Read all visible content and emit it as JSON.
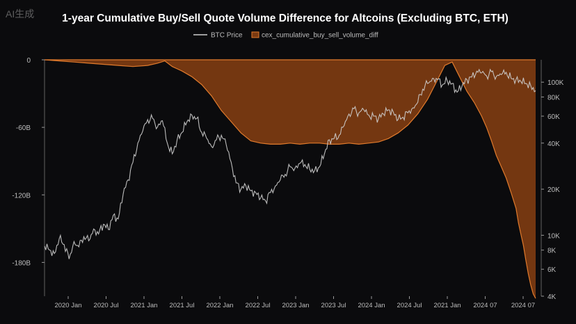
{
  "watermark": "AI生成",
  "colors": {
    "background": "#0b0b0d",
    "btc_line": "#cfcfcf",
    "diff_fill": "#7a3a12",
    "diff_line": "#e07a2c",
    "tick_text": "#bdbdbd",
    "title_text": "#ffffff"
  },
  "chart_data": {
    "type": "area",
    "title": "1-year Cumulative Buy/Sell Quote Volume Difference for Altcoins (Excluding BTC, ETH)",
    "legend_position": "top-center",
    "grid": false,
    "x_tick_labels": [
      "2020 Jan",
      "2020 Jul",
      "2021 Jan",
      "2021 Jul",
      "2022 Jan",
      "2022 Jul",
      "2023 Jan",
      "2023 Jul",
      "2024 Jan",
      "2024 Jul",
      "2021 Jan",
      "2024 07",
      "2024 07"
    ],
    "y_left": {
      "ticks": [
        0,
        -60,
        -120,
        -180
      ],
      "tick_labels": [
        "0",
        "-60B",
        "-120B",
        "-180B"
      ],
      "range": [
        -210,
        0
      ]
    },
    "y_right": {
      "scale": "log",
      "ticks": [
        100000,
        80000,
        60000,
        40000,
        20000,
        10000,
        8000,
        6000,
        4000
      ],
      "tick_labels": [
        "100K",
        "80K",
        "60K",
        "40K",
        "20K",
        "10K",
        "8K",
        "6K",
        "4K"
      ],
      "range": [
        4000,
        140000
      ]
    },
    "series": [
      {
        "name": "BTC Price",
        "axis": "right",
        "x": [
          0,
          0.01,
          0.02,
          0.03,
          0.04,
          0.05,
          0.06,
          0.07,
          0.08,
          0.09,
          0.1,
          0.11,
          0.12,
          0.13,
          0.14,
          0.15,
          0.16,
          0.17,
          0.18,
          0.19,
          0.2,
          0.21,
          0.22,
          0.23,
          0.24,
          0.25,
          0.26,
          0.27,
          0.28,
          0.29,
          0.3,
          0.31,
          0.32,
          0.33,
          0.34,
          0.35,
          0.36,
          0.37,
          0.38,
          0.39,
          0.4,
          0.41,
          0.42,
          0.43,
          0.44,
          0.45,
          0.46,
          0.47,
          0.48,
          0.49,
          0.5,
          0.51,
          0.52,
          0.53,
          0.54,
          0.55,
          0.56,
          0.57,
          0.58,
          0.59,
          0.6,
          0.61,
          0.62,
          0.63,
          0.64,
          0.65,
          0.66,
          0.67,
          0.68,
          0.69,
          0.7,
          0.71,
          0.72,
          0.73,
          0.74,
          0.75,
          0.76,
          0.77,
          0.78,
          0.79,
          0.8,
          0.81,
          0.82,
          0.83,
          0.84,
          0.85,
          0.86,
          0.87,
          0.88,
          0.89,
          0.9,
          0.91,
          0.92,
          0.93,
          0.94,
          0.95,
          0.96,
          0.97,
          0.98,
          0.99,
          1.0
        ],
        "values": [
          8500,
          8000,
          7600,
          9500,
          8700,
          7000,
          9100,
          8400,
          9800,
          9200,
          11000,
          10200,
          11800,
          10900,
          13500,
          12800,
          18500,
          23000,
          30000,
          40000,
          48000,
          57000,
          58000,
          51000,
          56000,
          40000,
          34000,
          42000,
          47000,
          55000,
          61000,
          58000,
          47000,
          43000,
          38000,
          42000,
          45000,
          39000,
          30000,
          22000,
          20000,
          21000,
          19500,
          19000,
          17500,
          16800,
          19000,
          21000,
          23000,
          25000,
          28000,
          27500,
          29500,
          29000,
          27000,
          26500,
          28000,
          34000,
          42000,
          43000,
          45000,
          52000,
          62000,
          67000,
          63000,
          66000,
          61000,
          60000,
          58000,
          62000,
          66000,
          64000,
          57000,
          59000,
          63000,
          68000,
          74000,
          90000,
          98000,
          106000,
          104000,
          96000,
          102000,
          98000,
          86000,
          94000,
          104000,
          108000,
          118000,
          115000,
          110000,
          117000,
          109000,
          112000,
          116000,
          106000,
          104000,
          101000,
          98000,
          95000,
          88000
        ]
      },
      {
        "name": "cex_cumulative_buy_sell_volume_diff",
        "axis": "left",
        "x": [
          0,
          0.03,
          0.06,
          0.09,
          0.12,
          0.15,
          0.18,
          0.21,
          0.23,
          0.245,
          0.26,
          0.28,
          0.3,
          0.32,
          0.34,
          0.36,
          0.38,
          0.4,
          0.42,
          0.44,
          0.46,
          0.48,
          0.5,
          0.52,
          0.54,
          0.56,
          0.58,
          0.6,
          0.62,
          0.64,
          0.66,
          0.68,
          0.7,
          0.72,
          0.74,
          0.76,
          0.78,
          0.8,
          0.815,
          0.83,
          0.845,
          0.86,
          0.875,
          0.89,
          0.9,
          0.91,
          0.92,
          0.93,
          0.94,
          0.95,
          0.96,
          0.965,
          0.97,
          0.975,
          0.98,
          0.985,
          0.99,
          0.995,
          1.0
        ],
        "values": [
          0,
          -1,
          -2,
          -3,
          -4,
          -5,
          -6,
          -5,
          -3,
          -1,
          -6,
          -10,
          -15,
          -22,
          -32,
          -45,
          -55,
          -65,
          -72,
          -74,
          -75,
          -75,
          -74,
          -75,
          -74,
          -74,
          -75,
          -75,
          -74,
          -75,
          -74,
          -73,
          -70,
          -65,
          -58,
          -48,
          -35,
          -18,
          -5,
          -2,
          -15,
          -28,
          -38,
          -50,
          -60,
          -72,
          -85,
          -95,
          -105,
          -118,
          -132,
          -145,
          -155,
          -165,
          -178,
          -190,
          -200,
          -208,
          -212
        ]
      }
    ]
  }
}
